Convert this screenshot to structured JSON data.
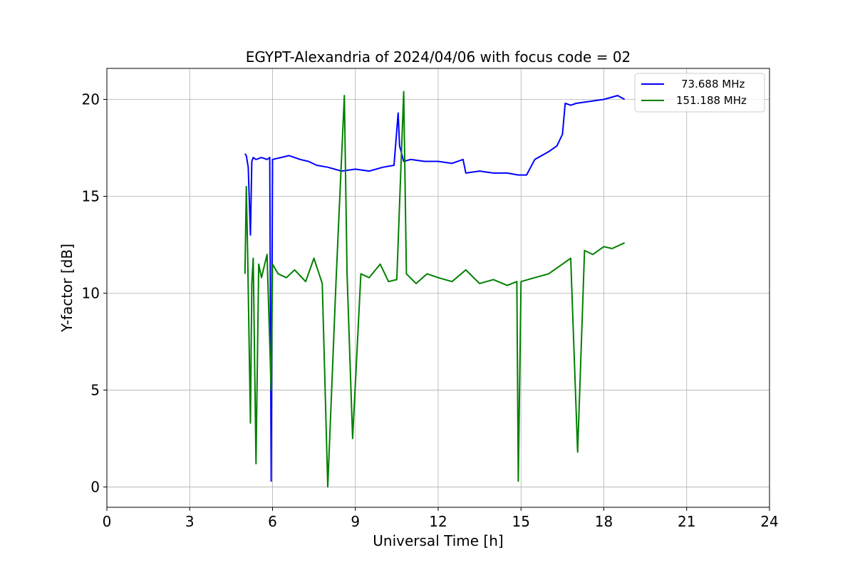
{
  "chart_data": {
    "type": "line",
    "title": "EGYPT-Alexandria of 2024/04/06 with focus code = 02",
    "xlabel": "Universal Time [h]",
    "ylabel": "Y-factor [dB]",
    "xlim": [
      0,
      24
    ],
    "ylim": [
      -1.05,
      21.6
    ],
    "xticks": [
      0,
      3,
      6,
      9,
      12,
      15,
      18,
      21,
      24
    ],
    "yticks": [
      0,
      5,
      10,
      15,
      20
    ],
    "grid": true,
    "legend_position": "top-right",
    "series": [
      {
        "name": "73.688 MHz",
        "color": "#0000ff",
        "x": [
          5.0,
          5.05,
          5.12,
          5.2,
          5.25,
          5.3,
          5.4,
          5.6,
          5.8,
          5.9,
          5.95,
          6.0,
          6.3,
          6.6,
          7.0,
          7.3,
          7.6,
          8.0,
          8.5,
          9.0,
          9.5,
          10.0,
          10.4,
          10.55,
          10.6,
          10.75,
          11.0,
          11.5,
          12.0,
          12.5,
          12.9,
          13.0,
          13.5,
          14.0,
          14.5,
          14.9,
          15.2,
          15.5,
          16.0,
          16.3,
          16.5,
          16.6,
          16.8,
          17.0,
          17.5,
          18.0,
          18.5,
          18.75
        ],
        "y": [
          17.2,
          17.1,
          16.5,
          13.0,
          16.8,
          17.0,
          16.9,
          17.0,
          16.9,
          17.0,
          0.3,
          16.9,
          17.0,
          17.1,
          16.9,
          16.8,
          16.6,
          16.5,
          16.3,
          16.4,
          16.3,
          16.5,
          16.6,
          19.3,
          17.6,
          16.8,
          16.9,
          16.8,
          16.8,
          16.7,
          16.9,
          16.2,
          16.3,
          16.2,
          16.2,
          16.1,
          16.1,
          16.9,
          17.3,
          17.6,
          18.2,
          19.8,
          19.7,
          19.8,
          19.9,
          20.0,
          20.2,
          20.0
        ]
      },
      {
        "name": "151.188 MHz",
        "color": "#008000",
        "x": [
          5.0,
          5.05,
          5.1,
          5.2,
          5.25,
          5.3,
          5.4,
          5.5,
          5.6,
          5.8,
          5.95,
          6.0,
          6.2,
          6.5,
          6.8,
          7.2,
          7.5,
          7.8,
          8.0,
          8.3,
          8.6,
          8.7,
          8.9,
          9.2,
          9.5,
          9.9,
          10.2,
          10.5,
          10.75,
          10.85,
          11.2,
          11.6,
          12.0,
          12.5,
          13.0,
          13.5,
          14.0,
          14.5,
          14.85,
          14.9,
          15.0,
          15.5,
          16.0,
          16.5,
          16.8,
          17.05,
          17.3,
          17.6,
          18.0,
          18.3,
          18.75
        ],
        "y": [
          11.0,
          15.5,
          12.0,
          3.3,
          10.5,
          11.8,
          1.2,
          11.5,
          10.8,
          12.0,
          5.0,
          11.5,
          11.0,
          10.8,
          11.2,
          10.6,
          11.8,
          10.5,
          0.0,
          10.6,
          20.2,
          11.0,
          2.5,
          11.0,
          10.8,
          11.5,
          10.6,
          10.7,
          20.4,
          11.0,
          10.5,
          11.0,
          10.8,
          10.6,
          11.2,
          10.5,
          10.7,
          10.4,
          10.6,
          0.3,
          10.6,
          10.8,
          11.0,
          11.5,
          11.8,
          1.8,
          12.2,
          12.0,
          12.4,
          12.3,
          12.6
        ]
      }
    ]
  }
}
